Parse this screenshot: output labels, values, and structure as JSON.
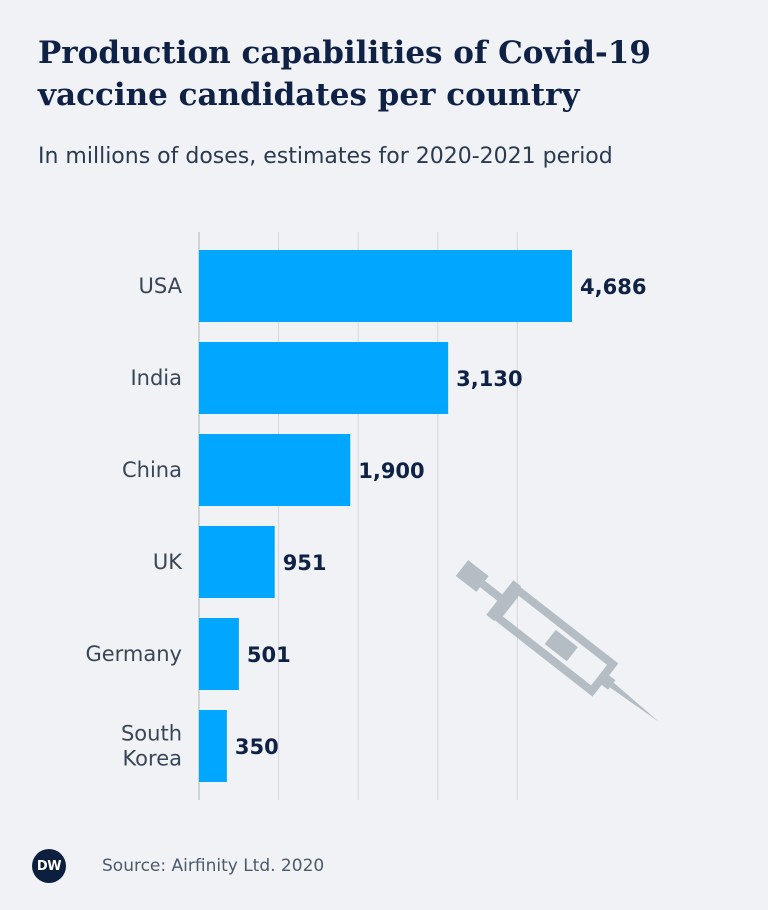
{
  "header": {
    "title": "Production capabilities of Covid-19 vaccine candidates per country",
    "subtitle": "In millions of doses, estimates for 2020-2021 period"
  },
  "chart_data": {
    "type": "bar",
    "orientation": "horizontal",
    "categories": [
      "USA",
      "India",
      "China",
      "UK",
      "Germany",
      "South Korea"
    ],
    "values": [
      4686,
      3130,
      1900,
      951,
      501,
      350
    ],
    "value_labels": [
      "4,686",
      "3,130",
      "1,900",
      "951",
      "501",
      "350"
    ],
    "title": "Production capabilities of Covid-19 vaccine candidates per country",
    "subtitle": "In millions of doses, estimates for 2020-2021 period",
    "unit": "millions of doses",
    "xlim": [
      0,
      5000
    ],
    "gridlines": [
      0,
      1000,
      2000,
      3000,
      4000
    ],
    "grid": true,
    "bar_color": "#00a6ff",
    "decoration": "syringe-icon"
  },
  "footer": {
    "logo_text": "DW",
    "source": "Source: Airfinity Ltd. 2020"
  },
  "colors": {
    "background": "#f0f2f5",
    "title": "#0f2246",
    "bar": "#00a6ff",
    "value_label": "#0f2246",
    "grid": "#d3d7dd",
    "icon": "#b4bcc4"
  }
}
